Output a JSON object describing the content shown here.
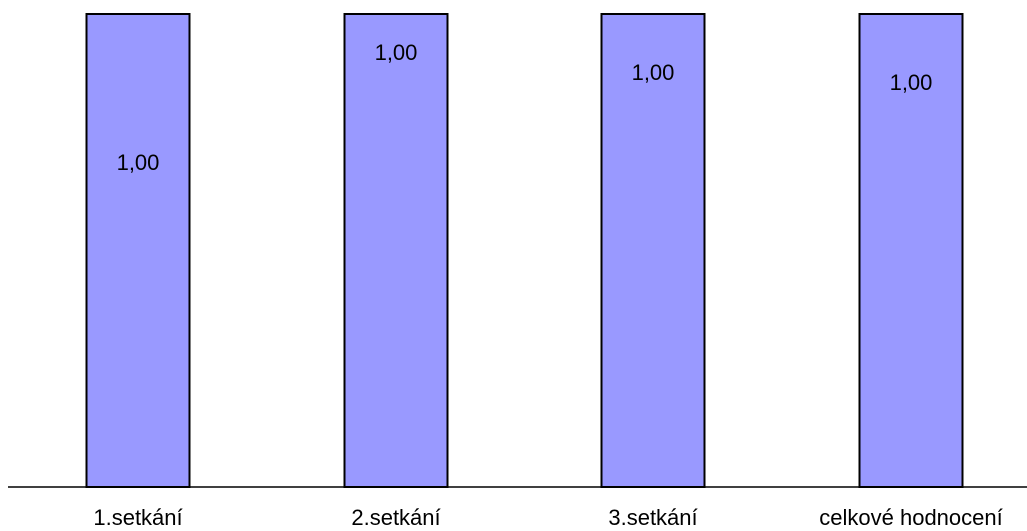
{
  "chart_data": {
    "type": "bar",
    "title": "",
    "xlabel": "",
    "ylabel": "",
    "categories": [
      "1.setkání",
      "2.setkání",
      "3.setkání",
      "celkové hodnocení"
    ],
    "series": [
      {
        "values": [
          1.0,
          1.0,
          1.0,
          1.0
        ],
        "data_labels": [
          "1,00",
          "1,00",
          "1,00",
          "1,00"
        ],
        "color": "#9999ff"
      }
    ],
    "ylim": [
      0,
      1
    ],
    "grid": false,
    "legend": "none",
    "axis_color": "#000000"
  }
}
